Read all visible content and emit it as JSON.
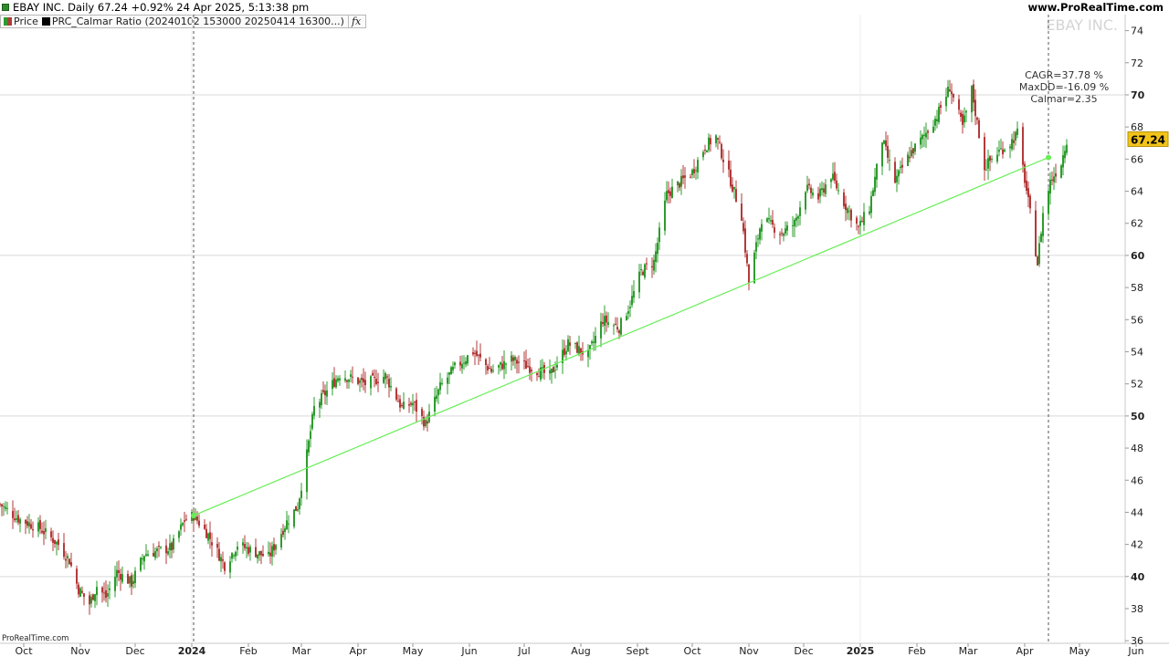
{
  "header": {
    "title": "EBAY INC. Daily 67.24 +0.92% 24 Apr 2025, 5:13:38 pm",
    "site": "www.ProRealTime.com",
    "icon": "candlestick-chart-icon"
  },
  "legend": {
    "price_label": "Price",
    "indicator_label": "PRC_Calmar Ratio (20240102 153000 20250414 16300...)",
    "fx_label": "fx",
    "price_color": "#2f8a2f",
    "indicator_color": "#000000"
  },
  "watermark": "EBAY INC.",
  "stats": {
    "cagr": "CAGR=37.78 %",
    "maxdd": "MaxDD=-16.09 %",
    "calmar": "Calmar=2.35"
  },
  "footer": {
    "brand": "ProRealTime.com"
  },
  "chart_data": {
    "type": "candlestick",
    "x_start": "2023-09-18",
    "y_range": [
      35.5,
      75
    ],
    "last_price_label": "67.24",
    "y_ticks": [
      {
        "v": 36,
        "label": "36"
      },
      {
        "v": 38,
        "label": "38"
      },
      {
        "v": 40,
        "label": "40"
      },
      {
        "v": 42,
        "label": "42"
      },
      {
        "v": 44,
        "label": "44"
      },
      {
        "v": 46,
        "label": "46"
      },
      {
        "v": 48,
        "label": "48"
      },
      {
        "v": 50,
        "label": "50"
      },
      {
        "v": 52,
        "label": "52"
      },
      {
        "v": 54,
        "label": "54"
      },
      {
        "v": 56,
        "label": "56"
      },
      {
        "v": 58,
        "label": "58"
      },
      {
        "v": 60,
        "label": "60"
      },
      {
        "v": 62,
        "label": "62"
      },
      {
        "v": 64,
        "label": "64"
      },
      {
        "v": 66,
        "label": "66"
      },
      {
        "v": 68,
        "label": "68"
      },
      {
        "v": 70,
        "label": "70"
      },
      {
        "v": 72,
        "label": "72"
      },
      {
        "v": 74,
        "label": "74"
      }
    ],
    "bold_ticks": [
      40,
      50,
      60,
      70
    ],
    "x_ticks": [
      {
        "date": "2023-10-01",
        "label": "Oct"
      },
      {
        "date": "2023-11-01",
        "label": "Nov"
      },
      {
        "date": "2023-12-01",
        "label": "Dec"
      },
      {
        "date": "2024-01-01",
        "label": "2024"
      },
      {
        "date": "2024-02-01",
        "label": "Feb"
      },
      {
        "date": "2024-03-01",
        "label": "Mar"
      },
      {
        "date": "2024-04-01",
        "label": "Apr"
      },
      {
        "date": "2024-05-01",
        "label": "May"
      },
      {
        "date": "2024-06-01",
        "label": "Jun"
      },
      {
        "date": "2024-07-01",
        "label": "Jul"
      },
      {
        "date": "2024-08-01",
        "label": "Aug"
      },
      {
        "date": "2024-09-01",
        "label": "Sept"
      },
      {
        "date": "2024-10-01",
        "label": "Oct"
      },
      {
        "date": "2024-11-01",
        "label": "Nov"
      },
      {
        "date": "2024-12-01",
        "label": "Dec"
      },
      {
        "date": "2025-01-01",
        "label": "2025"
      },
      {
        "date": "2025-02-01",
        "label": "Feb"
      },
      {
        "date": "2025-03-01",
        "label": "Mar"
      },
      {
        "date": "2025-04-01",
        "label": "Apr"
      },
      {
        "date": "2025-05-01",
        "label": "May"
      },
      {
        "date": "2025-06-01",
        "label": "Jun"
      }
    ],
    "year_labels": [
      "2024",
      "2025"
    ],
    "vertical_markers": [
      "2024-01-02",
      "2025-04-14"
    ],
    "trend_line": {
      "from": {
        "date": "2024-01-02",
        "value": 43.8
      },
      "to": {
        "date": "2025-04-14",
        "value": 66.1
      },
      "color": "#66ee55"
    },
    "up_color": "#2e9b2e",
    "down_color": "#b33a3a",
    "price_path": [
      [
        "2023-09-18",
        44.5
      ],
      [
        "2023-09-28",
        43.6
      ],
      [
        "2023-10-10",
        43.0
      ],
      [
        "2023-10-20",
        42.0
      ],
      [
        "2023-10-26",
        41.0
      ],
      [
        "2023-10-31",
        39.2
      ],
      [
        "2023-11-06",
        38.3
      ],
      [
        "2023-11-10",
        39.4
      ],
      [
        "2023-11-15",
        38.7
      ],
      [
        "2023-11-21",
        40.3
      ],
      [
        "2023-11-29",
        39.6
      ],
      [
        "2023-12-06",
        41.4
      ],
      [
        "2023-12-14",
        41.6
      ],
      [
        "2023-12-21",
        41.8
      ],
      [
        "2023-12-28",
        43.5
      ],
      [
        "2024-01-02",
        43.8
      ],
      [
        "2024-01-10",
        42.6
      ],
      [
        "2024-01-19",
        40.7
      ],
      [
        "2024-01-26",
        42.0
      ],
      [
        "2024-02-05",
        41.5
      ],
      [
        "2024-02-12",
        41.2
      ],
      [
        "2024-02-22",
        43.4
      ],
      [
        "2024-02-28",
        44.4
      ],
      [
        "2024-03-04",
        47.6
      ],
      [
        "2024-03-08",
        50.5
      ],
      [
        "2024-03-14",
        51.4
      ],
      [
        "2024-03-22",
        52.6
      ],
      [
        "2024-04-05",
        52.0
      ],
      [
        "2024-04-16",
        52.5
      ],
      [
        "2024-04-25",
        50.5
      ],
      [
        "2024-05-01",
        50.8
      ],
      [
        "2024-05-08",
        49.5
      ],
      [
        "2024-05-16",
        51.8
      ],
      [
        "2024-05-24",
        53.0
      ],
      [
        "2024-06-03",
        54.0
      ],
      [
        "2024-06-13",
        52.8
      ],
      [
        "2024-06-24",
        53.5
      ],
      [
        "2024-07-05",
        53.0
      ],
      [
        "2024-07-15",
        52.5
      ],
      [
        "2024-07-25",
        54.5
      ],
      [
        "2024-08-05",
        53.8
      ],
      [
        "2024-08-13",
        56.0
      ],
      [
        "2024-08-22",
        55.5
      ],
      [
        "2024-08-28",
        57.0
      ],
      [
        "2024-09-03",
        59.0
      ],
      [
        "2024-09-10",
        59.6
      ],
      [
        "2024-09-17",
        63.8
      ],
      [
        "2024-09-24",
        64.5
      ],
      [
        "2024-10-01",
        65.2
      ],
      [
        "2024-10-08",
        66.8
      ],
      [
        "2024-10-14",
        67.4
      ],
      [
        "2024-10-21",
        65.0
      ],
      [
        "2024-10-28",
        62.5
      ],
      [
        "2024-11-01",
        58.3
      ],
      [
        "2024-11-08",
        62.3
      ],
      [
        "2024-11-19",
        61.4
      ],
      [
        "2024-11-26",
        62.0
      ],
      [
        "2024-12-02",
        64.2
      ],
      [
        "2024-12-09",
        63.6
      ],
      [
        "2024-12-16",
        65.0
      ],
      [
        "2024-12-23",
        63.3
      ],
      [
        "2024-12-31",
        61.7
      ],
      [
        "2025-01-06",
        63.0
      ],
      [
        "2025-01-13",
        67.2
      ],
      [
        "2025-01-20",
        64.6
      ],
      [
        "2025-01-28",
        66.3
      ],
      [
        "2025-02-04",
        67.3
      ],
      [
        "2025-02-12",
        68.7
      ],
      [
        "2025-02-19",
        70.5
      ],
      [
        "2025-02-26",
        68.0
      ],
      [
        "2025-03-03",
        70.3
      ],
      [
        "2025-03-10",
        65.5
      ],
      [
        "2025-03-17",
        66.4
      ],
      [
        "2025-03-24",
        67.0
      ],
      [
        "2025-03-28",
        67.6
      ],
      [
        "2025-04-04",
        62.6
      ],
      [
        "2025-04-08",
        59.5
      ],
      [
        "2025-04-11",
        62.6
      ],
      [
        "2025-04-15",
        64.6
      ],
      [
        "2025-04-21",
        65.8
      ],
      [
        "2025-04-24",
        67.24
      ]
    ]
  }
}
